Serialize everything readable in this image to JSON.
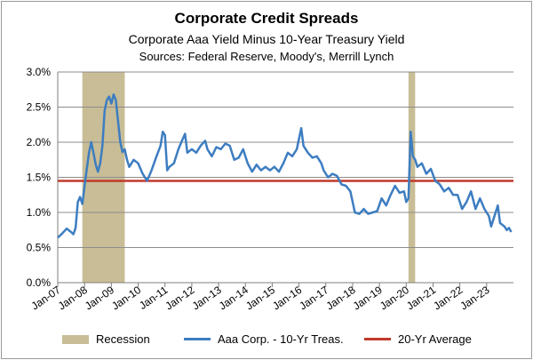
{
  "chart_data": {
    "type": "line",
    "title": "Corporate Credit Spreads",
    "subtitle": "Corporate Aaa Yield Minus 10-Year Treasury Yield",
    "source": "Sources:  Federal Reserve, Moody's, Merrill Lynch",
    "ylim": [
      0,
      3.0
    ],
    "y_ticks": [
      "0.0%",
      "0.5%",
      "1.0%",
      "1.5%",
      "2.0%",
      "2.5%",
      "3.0%"
    ],
    "x_ticks": [
      "Jan-07",
      "Jan-08",
      "Jan-09",
      "Jan-10",
      "Jan-11",
      "Jan-12",
      "Jan-13",
      "Jan-14",
      "Jan-15",
      "Jan-16",
      "Jan-17",
      "Jan-18",
      "Jan-19",
      "Jan-20",
      "Jan-21",
      "Jan-22",
      "Jan-23"
    ],
    "xlim": [
      "2007-01",
      "2023-12"
    ],
    "grid": "horizontal",
    "recessions": [
      {
        "start": "2007-12",
        "end": "2009-06"
      },
      {
        "start": "2020-02",
        "end": "2020-04"
      }
    ],
    "average": {
      "name": "20-Yr Average",
      "value": 1.45,
      "color": "#c0392b"
    },
    "series": [
      {
        "name": "Aaa Corp. - 10-Yr Treas.",
        "color": "#3d7dc1",
        "points": [
          [
            "2007-01",
            0.64
          ],
          [
            "2007-03",
            0.7
          ],
          [
            "2007-05",
            0.77
          ],
          [
            "2007-07",
            0.72
          ],
          [
            "2007-08",
            0.69
          ],
          [
            "2007-09",
            0.78
          ],
          [
            "2007-10",
            1.15
          ],
          [
            "2007-11",
            1.22
          ],
          [
            "2007-12",
            1.12
          ],
          [
            "2008-01",
            1.38
          ],
          [
            "2008-02",
            1.62
          ],
          [
            "2008-03",
            1.85
          ],
          [
            "2008-04",
            2.0
          ],
          [
            "2008-05",
            1.85
          ],
          [
            "2008-06",
            1.68
          ],
          [
            "2008-07",
            1.58
          ],
          [
            "2008-08",
            1.7
          ],
          [
            "2008-09",
            1.95
          ],
          [
            "2008-10",
            2.45
          ],
          [
            "2008-11",
            2.6
          ],
          [
            "2008-12",
            2.65
          ],
          [
            "2009-01",
            2.55
          ],
          [
            "2009-02",
            2.68
          ],
          [
            "2009-03",
            2.6
          ],
          [
            "2009-04",
            2.3
          ],
          [
            "2009-05",
            2.0
          ],
          [
            "2009-06",
            1.86
          ],
          [
            "2009-07",
            1.9
          ],
          [
            "2009-08",
            1.75
          ],
          [
            "2009-09",
            1.65
          ],
          [
            "2009-11",
            1.75
          ],
          [
            "2010-01",
            1.7
          ],
          [
            "2010-03",
            1.55
          ],
          [
            "2010-05",
            1.45
          ],
          [
            "2010-07",
            1.6
          ],
          [
            "2010-09",
            1.78
          ],
          [
            "2010-11",
            1.95
          ],
          [
            "2010-12",
            2.15
          ],
          [
            "2011-01",
            2.1
          ],
          [
            "2011-02",
            1.6
          ],
          [
            "2011-03",
            1.65
          ],
          [
            "2011-05",
            1.7
          ],
          [
            "2011-07",
            1.9
          ],
          [
            "2011-09",
            2.05
          ],
          [
            "2011-10",
            2.12
          ],
          [
            "2011-11",
            1.85
          ],
          [
            "2012-01",
            1.9
          ],
          [
            "2012-03",
            1.85
          ],
          [
            "2012-05",
            1.95
          ],
          [
            "2012-07",
            2.02
          ],
          [
            "2012-08",
            1.9
          ],
          [
            "2012-10",
            1.8
          ],
          [
            "2012-12",
            1.93
          ],
          [
            "2013-02",
            1.9
          ],
          [
            "2013-04",
            1.98
          ],
          [
            "2013-06",
            1.95
          ],
          [
            "2013-08",
            1.75
          ],
          [
            "2013-10",
            1.78
          ],
          [
            "2013-12",
            1.9
          ],
          [
            "2014-02",
            1.7
          ],
          [
            "2014-04",
            1.58
          ],
          [
            "2014-06",
            1.68
          ],
          [
            "2014-08",
            1.6
          ],
          [
            "2014-10",
            1.65
          ],
          [
            "2014-12",
            1.6
          ],
          [
            "2015-02",
            1.65
          ],
          [
            "2015-04",
            1.58
          ],
          [
            "2015-06",
            1.7
          ],
          [
            "2015-08",
            1.85
          ],
          [
            "2015-10",
            1.8
          ],
          [
            "2015-12",
            1.9
          ],
          [
            "2016-02",
            2.2
          ],
          [
            "2016-03",
            1.95
          ],
          [
            "2016-05",
            1.85
          ],
          [
            "2016-07",
            1.78
          ],
          [
            "2016-09",
            1.8
          ],
          [
            "2016-11",
            1.7
          ],
          [
            "2016-12",
            1.6
          ],
          [
            "2017-02",
            1.5
          ],
          [
            "2017-04",
            1.55
          ],
          [
            "2017-06",
            1.52
          ],
          [
            "2017-08",
            1.4
          ],
          [
            "2017-10",
            1.38
          ],
          [
            "2017-12",
            1.3
          ],
          [
            "2018-02",
            1.0
          ],
          [
            "2018-04",
            0.98
          ],
          [
            "2018-06",
            1.05
          ],
          [
            "2018-08",
            0.98
          ],
          [
            "2018-10",
            1.0
          ],
          [
            "2018-12",
            1.02
          ],
          [
            "2019-02",
            1.2
          ],
          [
            "2019-04",
            1.1
          ],
          [
            "2019-06",
            1.25
          ],
          [
            "2019-08",
            1.38
          ],
          [
            "2019-10",
            1.28
          ],
          [
            "2019-12",
            1.3
          ],
          [
            "2020-01",
            1.15
          ],
          [
            "2020-02",
            1.2
          ],
          [
            "2020-03",
            2.15
          ],
          [
            "2020-04",
            1.8
          ],
          [
            "2020-05",
            1.75
          ],
          [
            "2020-06",
            1.65
          ],
          [
            "2020-08",
            1.7
          ],
          [
            "2020-10",
            1.55
          ],
          [
            "2020-12",
            1.62
          ],
          [
            "2021-02",
            1.45
          ],
          [
            "2021-04",
            1.4
          ],
          [
            "2021-06",
            1.3
          ],
          [
            "2021-08",
            1.35
          ],
          [
            "2021-10",
            1.25
          ],
          [
            "2021-12",
            1.25
          ],
          [
            "2022-02",
            1.05
          ],
          [
            "2022-04",
            1.15
          ],
          [
            "2022-06",
            1.3
          ],
          [
            "2022-08",
            1.05
          ],
          [
            "2022-10",
            1.2
          ],
          [
            "2022-12",
            1.05
          ],
          [
            "2023-02",
            0.95
          ],
          [
            "2023-03",
            0.8
          ],
          [
            "2023-04",
            0.9
          ],
          [
            "2023-06",
            1.1
          ],
          [
            "2023-07",
            0.85
          ],
          [
            "2023-09",
            0.8
          ],
          [
            "2023-10",
            0.75
          ],
          [
            "2023-11",
            0.78
          ],
          [
            "2023-12",
            0.72
          ]
        ]
      }
    ],
    "legend": {
      "position": "bottom",
      "items": [
        {
          "label": "Recession",
          "color": "#c8bd96"
        },
        {
          "label": "Aaa Corp. - 10-Yr Treas.",
          "color": "#3d7dc1"
        },
        {
          "label": "20-Yr Average",
          "color": "#c0392b"
        }
      ]
    }
  }
}
